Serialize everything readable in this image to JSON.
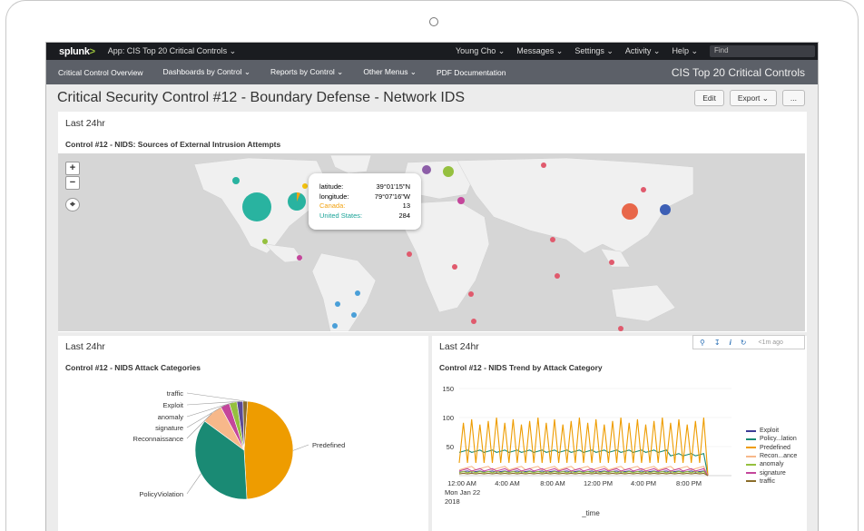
{
  "topbar": {
    "logo": "splunk>",
    "app": "App: CIS Top 20 Critical Controls ⌄",
    "menus": [
      "Young Cho ⌄",
      "Messages ⌄",
      "Settings ⌄",
      "Activity ⌄",
      "Help ⌄"
    ],
    "find_placeholder": "Find"
  },
  "nav": {
    "items": [
      "Critical Control Overview",
      "Dashboards by Control ⌄",
      "Reports by Control ⌄",
      "Other Menus ⌄",
      "PDF Documentation"
    ],
    "app_title": "CIS Top 20 Critical Controls"
  },
  "page": {
    "title": "Critical Security Control #12 - Boundary Defense - Network IDS",
    "edit": "Edit",
    "export": "Export ⌄",
    "more": "..."
  },
  "map_panel": {
    "time": "Last 24hr",
    "title": "Control #12 - NIDS: Sources of External Intrusion Attempts",
    "zoom_in": "+",
    "zoom_out": "−",
    "tooltip": {
      "lat_label": "latitude:",
      "lat_value": "39°01'15\"N",
      "lon_label": "longitude:",
      "lon_value": "79°07'16\"W",
      "c1_label": "Canada:",
      "c1_value": "13",
      "c1_color": "#f2a20f",
      "c2_label": "United States:",
      "c2_value": "284",
      "c2_color": "#1aa398"
    }
  },
  "pie_panel": {
    "time": "Last 24hr",
    "title": "Control #12 - NIDS Attack Categories",
    "labels": [
      "traffic",
      "Exploit",
      "anomaly",
      "signature",
      "Reconnaissance",
      "Predefined",
      "PolicyViolation"
    ]
  },
  "trend_panel": {
    "time": "Last 24hr",
    "title": "Control #12 - NIDS Trend by Attack Category",
    "tools": {
      "ago": "<1m ago"
    },
    "xlabel": "_time",
    "date_line1": "Mon Jan 22",
    "date_line2": "2018"
  },
  "chart_data": [
    {
      "type": "pie",
      "title": "Control #12 - NIDS Attack Categories",
      "categories": [
        "Predefined",
        "PolicyViolation",
        "Reconnaissance",
        "signature",
        "anomaly",
        "Exploit",
        "traffic"
      ],
      "values": [
        48,
        36,
        7,
        3,
        2.5,
        2,
        1.5
      ],
      "colors": [
        "#ee9c00",
        "#1a8a74",
        "#f7b88a",
        "#c4469b",
        "#95c03f",
        "#5c4a96",
        "#8b6d2a"
      ]
    },
    {
      "type": "line",
      "title": "Control #12 - NIDS Trend by Attack Category",
      "xlabel": "_time",
      "x_ticks": [
        "12:00 AM",
        "4:00 AM",
        "8:00 AM",
        "12:00 PM",
        "4:00 PM",
        "8:00 PM"
      ],
      "yticks": [
        50,
        100,
        150
      ],
      "ylim": [
        0,
        150
      ],
      "legend": "right",
      "series": [
        {
          "name": "Exploit",
          "color": "#3d3c96"
        },
        {
          "name": "Policy...lation",
          "color": "#1a8a74"
        },
        {
          "name": "Predefined",
          "color": "#ee9c00"
        },
        {
          "name": "Recon...ance",
          "color": "#f7b88a"
        },
        {
          "name": "anomaly",
          "color": "#95c03f"
        },
        {
          "name": "signature",
          "color": "#c4469b"
        },
        {
          "name": "traffic",
          "color": "#8b6d2a"
        }
      ]
    }
  ]
}
